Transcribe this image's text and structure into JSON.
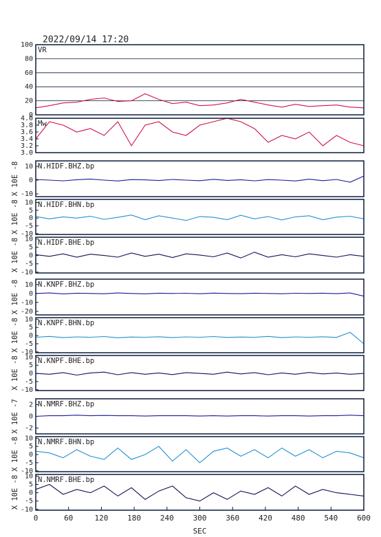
{
  "header": {
    "title": "2022/09/14  17:20"
  },
  "chart_data": [
    {
      "type": "line",
      "title": "VR",
      "color": "#d0104c",
      "grid": true,
      "xlim": [
        0,
        600
      ],
      "ylim": [
        0,
        100
      ],
      "yticks": [
        0,
        20,
        40,
        60,
        80,
        100
      ],
      "x": [
        0,
        25,
        50,
        75,
        100,
        125,
        150,
        175,
        200,
        225,
        250,
        275,
        300,
        325,
        350,
        375,
        400,
        425,
        450,
        475,
        500,
        525,
        550,
        575,
        600
      ],
      "values": [
        10,
        13,
        17,
        18,
        22,
        24,
        19,
        20,
        30,
        22,
        16,
        18,
        13,
        14,
        17,
        22,
        18,
        14,
        11,
        15,
        12,
        13,
        14,
        11,
        10
      ]
    },
    {
      "type": "line",
      "title": "Mw",
      "color": "#d0104c",
      "grid": false,
      "xlim": [
        0,
        600
      ],
      "ylim": [
        3,
        4
      ],
      "yticks": [
        {
          "value": 3,
          "label": "3.0"
        },
        {
          "value": 3.2,
          "label": "3.2"
        },
        {
          "value": 3.4,
          "label": "3.4"
        },
        {
          "value": 3.6,
          "label": "3.6"
        },
        {
          "value": 3.8,
          "label": "3.8"
        },
        {
          "value": 4,
          "label": "4.0"
        }
      ],
      "x": [
        0,
        25,
        50,
        75,
        100,
        125,
        150,
        175,
        200,
        225,
        250,
        275,
        300,
        325,
        350,
        375,
        400,
        425,
        450,
        475,
        500,
        525,
        550,
        575,
        600
      ],
      "values": [
        3.4,
        3.9,
        3.8,
        3.6,
        3.7,
        3.5,
        3.9,
        3.2,
        3.8,
        3.9,
        3.6,
        3.5,
        3.8,
        3.9,
        4,
        3.9,
        3.7,
        3.3,
        3.5,
        3.4,
        3.6,
        3.2,
        3.5,
        3.3,
        3.2
      ]
    },
    {
      "type": "line",
      "title": "N.HIDF.BHZ.bp",
      "y_label": "X 10E -8",
      "color": "#1a1a9a",
      "grid": false,
      "xlim": [
        0,
        600
      ],
      "ylim": [
        -12,
        14
      ],
      "yticks": [
        -10,
        0,
        10
      ],
      "x": [
        0,
        25,
        50,
        75,
        100,
        125,
        150,
        175,
        200,
        225,
        250,
        275,
        300,
        325,
        350,
        375,
        400,
        425,
        450,
        475,
        500,
        525,
        550,
        575,
        600
      ],
      "values": [
        0.5,
        0,
        -0.5,
        0.3,
        0.8,
        0,
        -0.6,
        0.4,
        0.2,
        -0.3,
        0.5,
        0,
        -0.4,
        0.6,
        -0.2,
        0.3,
        -0.5,
        0.4,
        0,
        -0.6,
        0.7,
        -0.4,
        0.5,
        -1.5,
        3
      ]
    },
    {
      "type": "line",
      "title": "N.HIDF.BHN.bp",
      "y_label": "X 10E -8",
      "color": "#2090d0",
      "grid": false,
      "xlim": [
        0,
        600
      ],
      "ylim": [
        -10.5,
        12
      ],
      "yticks": [
        -10,
        -5,
        0,
        5,
        10
      ],
      "x": [
        0,
        25,
        50,
        75,
        100,
        125,
        150,
        175,
        200,
        225,
        250,
        275,
        300,
        325,
        350,
        375,
        400,
        425,
        450,
        475,
        500,
        525,
        550,
        575,
        600
      ],
      "values": [
        1,
        -0.5,
        0.8,
        0,
        1.2,
        -0.8,
        0.5,
        2,
        -1,
        1.5,
        0,
        -1.5,
        1,
        0.5,
        -1,
        1.8,
        -0.5,
        1,
        -1.2,
        0.8,
        1.5,
        -1,
        0.6,
        1.2,
        -0.5
      ]
    },
    {
      "type": "line",
      "title": "N.HIDF.BHE.bp",
      "y_label": "X 10E -8",
      "color": "#101050",
      "grid": false,
      "xlim": [
        0,
        600
      ],
      "ylim": [
        -10.5,
        11
      ],
      "yticks": [
        -10,
        -5,
        0,
        5,
        10
      ],
      "x": [
        0,
        25,
        50,
        75,
        100,
        125,
        150,
        175,
        200,
        225,
        250,
        275,
        300,
        325,
        350,
        375,
        400,
        425,
        450,
        475,
        500,
        525,
        550,
        575,
        600
      ],
      "values": [
        0.5,
        -0.5,
        1,
        -1,
        0.8,
        0,
        -1,
        1.5,
        -0.5,
        0.8,
        -1.2,
        1,
        0.3,
        -0.8,
        1.5,
        -1.5,
        2,
        -1,
        0.5,
        -0.8,
        1,
        0,
        -1,
        0.5,
        -0.5
      ]
    },
    {
      "type": "line",
      "title": "N.KNPF.BHZ.bp",
      "y_label": "X 10E -8",
      "color": "#1a1a9a",
      "grid": false,
      "xlim": [
        0,
        600
      ],
      "ylim": [
        -24,
        16
      ],
      "yticks": [
        -20,
        -10,
        0,
        10
      ],
      "x": [
        0,
        25,
        50,
        75,
        100,
        125,
        150,
        175,
        200,
        225,
        250,
        275,
        300,
        325,
        350,
        375,
        400,
        425,
        450,
        475,
        500,
        525,
        550,
        575,
        600
      ],
      "values": [
        0,
        0.5,
        -0.5,
        0.3,
        0,
        -0.3,
        0.5,
        0,
        -0.4,
        0.3,
        0,
        0.2,
        -0.3,
        0.4,
        0,
        -0.2,
        0.3,
        0,
        -0.3,
        0.2,
        0,
        0.3,
        -0.2,
        0.5,
        -3
      ]
    },
    {
      "type": "line",
      "title": "N.KNPF.BHN.bp",
      "y_label": "X 10E -8",
      "color": "#2090d0",
      "grid": false,
      "xlim": [
        0,
        600
      ],
      "ylim": [
        -10.5,
        11
      ],
      "yticks": [
        -10,
        -5,
        0,
        5,
        10
      ],
      "x": [
        0,
        25,
        50,
        75,
        100,
        125,
        150,
        175,
        200,
        225,
        250,
        275,
        300,
        325,
        350,
        375,
        400,
        425,
        450,
        475,
        500,
        525,
        550,
        575,
        600
      ],
      "values": [
        -1,
        -0.5,
        -1.2,
        -0.8,
        -1,
        -0.6,
        -1.3,
        -0.9,
        -1,
        -0.7,
        -1.2,
        -0.8,
        -1,
        -0.6,
        -1.1,
        -0.9,
        -1,
        -0.5,
        -1.2,
        -0.8,
        -1,
        -0.7,
        -1.1,
        2,
        -5
      ]
    },
    {
      "type": "line",
      "title": "N.KNPF.BHE.bp",
      "y_label": "X 10E -8",
      "color": "#101050",
      "grid": false,
      "xlim": [
        0,
        600
      ],
      "ylim": [
        -10.5,
        11
      ],
      "yticks": [
        -10,
        -5,
        0,
        5,
        10
      ],
      "x": [
        0,
        25,
        50,
        75,
        100,
        125,
        150,
        175,
        200,
        225,
        250,
        275,
        300,
        325,
        350,
        375,
        400,
        425,
        450,
        475,
        500,
        525,
        550,
        575,
        600
      ],
      "values": [
        0,
        -0.5,
        0.5,
        -1,
        0.3,
        0.8,
        -0.8,
        0.5,
        -0.5,
        0.3,
        -0.7,
        0.5,
        0,
        -0.5,
        0.8,
        -0.3,
        0.5,
        -0.8,
        0.3,
        -0.5,
        0.6,
        -0.3,
        0.2,
        -0.5,
        0
      ]
    },
    {
      "type": "line",
      "title": "N.NMRF.BHZ.bp",
      "y_label": "X 10E -7",
      "color": "#1a1a9a",
      "grid": false,
      "xlim": [
        0,
        600
      ],
      "ylim": [
        -3,
        3
      ],
      "yticks": [
        -2,
        0,
        2
      ],
      "x": [
        0,
        25,
        50,
        75,
        100,
        125,
        150,
        175,
        200,
        225,
        250,
        275,
        300,
        325,
        350,
        375,
        400,
        425,
        450,
        475,
        500,
        525,
        550,
        575,
        600
      ],
      "values": [
        0,
        0.1,
        0.1,
        0.2,
        0.1,
        0.15,
        0.1,
        0.1,
        0.05,
        0.1,
        0.1,
        0.1,
        0.05,
        0.1,
        0.05,
        0.1,
        0.1,
        0.05,
        0.1,
        0.1,
        0.05,
        0.1,
        0.1,
        0.2,
        0.1
      ]
    },
    {
      "type": "line",
      "title": "N.NMRF.BHN.bp",
      "y_label": "X 10E -8",
      "color": "#2090d0",
      "grid": false,
      "xlim": [
        0,
        600
      ],
      "ylim": [
        -10.5,
        11
      ],
      "yticks": [
        -10,
        -5,
        0,
        5,
        10
      ],
      "x": [
        0,
        25,
        50,
        75,
        100,
        125,
        150,
        175,
        200,
        225,
        250,
        275,
        300,
        325,
        350,
        375,
        400,
        425,
        450,
        475,
        500,
        525,
        550,
        575,
        600
      ],
      "values": [
        2,
        1,
        -2,
        3,
        -1,
        -3,
        4,
        -3,
        0,
        5,
        -4,
        3,
        -5,
        2,
        4,
        -1,
        3,
        -2,
        4,
        -1,
        3,
        -2,
        2,
        1,
        -2
      ]
    },
    {
      "type": "line",
      "title": "N.NMRF.BHE.bp",
      "y_label": "X 10E -8",
      "color": "#101050",
      "grid": false,
      "xlim": [
        0,
        600
      ],
      "ylim": [
        -10.5,
        11
      ],
      "yticks": [
        -10,
        -5,
        0,
        5,
        10
      ],
      "x": [
        0,
        25,
        50,
        75,
        100,
        125,
        150,
        175,
        200,
        225,
        250,
        275,
        300,
        325,
        350,
        375,
        400,
        425,
        450,
        475,
        500,
        525,
        550,
        575,
        600
      ],
      "values": [
        2,
        5,
        -1,
        2,
        0,
        4,
        -2,
        3,
        -4,
        1,
        4,
        -3,
        -5,
        0,
        -4,
        1,
        -1,
        3,
        -2,
        4,
        -1,
        2,
        0,
        -1,
        -2
      ],
      "x_label": "SEC",
      "xticks": [
        0,
        60,
        120,
        180,
        240,
        300,
        360,
        420,
        480,
        540,
        600
      ]
    }
  ]
}
